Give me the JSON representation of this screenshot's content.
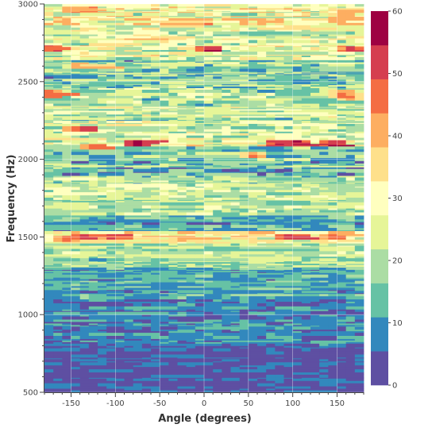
{
  "chart_data": {
    "type": "heatmap",
    "title": "",
    "xlabel": "Angle (degrees)",
    "ylabel": "Frequency (Hz)",
    "xlim": [
      -180,
      180
    ],
    "ylim": [
      500,
      3000
    ],
    "x_ticks": [
      -150,
      -100,
      -50,
      0,
      50,
      100,
      150
    ],
    "y_ticks": [
      500,
      1000,
      1500,
      2000,
      2500,
      3000
    ],
    "x_centers": [
      -175,
      -165,
      -155,
      -145,
      -135,
      -125,
      -115,
      -105,
      -95,
      -85,
      -75,
      -65,
      -55,
      -45,
      -35,
      -25,
      -15,
      -5,
      5,
      15,
      25,
      35,
      45,
      55,
      65,
      75,
      85,
      95,
      105,
      115,
      125,
      135,
      145,
      155,
      165,
      175
    ],
    "colorbar": {
      "min": 0,
      "max": 60,
      "ticks": [
        0,
        10,
        20,
        30,
        40,
        50,
        60
      ],
      "palette": [
        "#5e4fa2",
        "#3288bd",
        "#66c2a5",
        "#abdda4",
        "#e6f598",
        "#ffffbf",
        "#fee08b",
        "#fdae61",
        "#f46d43",
        "#d53e4f",
        "#9e0142"
      ]
    },
    "row_groups": [
      {
        "y_from": 500,
        "y_to": 800,
        "mean": 4,
        "spread": 4
      },
      {
        "y_from": 800,
        "y_to": 1100,
        "mean": 8,
        "spread": 5
      },
      {
        "y_from": 1100,
        "y_to": 1300,
        "mean": 11,
        "spread": 6
      },
      {
        "y_from": 1300,
        "y_to": 1460,
        "mean": 20,
        "spread": 7
      },
      {
        "y_from": 1460,
        "y_to": 1540,
        "mean": 28,
        "spread": 9
      },
      {
        "y_from": 1540,
        "y_to": 1650,
        "mean": 12,
        "spread": 7
      },
      {
        "y_from": 1650,
        "y_to": 1880,
        "mean": 21,
        "spread": 8
      },
      {
        "y_from": 1880,
        "y_to": 2080,
        "mean": 16,
        "spread": 9
      },
      {
        "y_from": 2080,
        "y_to": 2240,
        "mean": 26,
        "spread": 10
      },
      {
        "y_from": 2240,
        "y_to": 2480,
        "mean": 21,
        "spread": 10
      },
      {
        "y_from": 2480,
        "y_to": 2650,
        "mean": 16,
        "spread": 9
      },
      {
        "y_from": 2650,
        "y_to": 2850,
        "mean": 27,
        "spread": 10
      },
      {
        "y_from": 2850,
        "y_to": 3000,
        "mean": 30,
        "spread": 11
      }
    ],
    "hot_spots": [
      {
        "x": -150,
        "y": 2960,
        "value": 45
      },
      {
        "x": -130,
        "y": 2960,
        "value": 46
      },
      {
        "x": -160,
        "y": 2900,
        "value": 42
      },
      {
        "x": 160,
        "y": 2940,
        "value": 44
      },
      {
        "x": 150,
        "y": 2900,
        "value": 42
      },
      {
        "x": -170,
        "y": 2720,
        "value": 52
      },
      {
        "x": 5,
        "y": 2710,
        "value": 54
      },
      {
        "x": 165,
        "y": 2710,
        "value": 50
      },
      {
        "x": -140,
        "y": 2600,
        "value": 42
      },
      {
        "x": -175,
        "y": 2420,
        "value": 43
      },
      {
        "x": 155,
        "y": 2420,
        "value": 43
      },
      {
        "x": 165,
        "y": 2400,
        "value": 42
      },
      {
        "x": -140,
        "y": 2200,
        "value": 52
      },
      {
        "x": -150,
        "y": 2200,
        "value": 44
      },
      {
        "x": -75,
        "y": 2100,
        "value": 58
      },
      {
        "x": 85,
        "y": 2110,
        "value": 55
      },
      {
        "x": 105,
        "y": 2100,
        "value": 54
      },
      {
        "x": 145,
        "y": 2100,
        "value": 53
      },
      {
        "x": -125,
        "y": 2080,
        "value": 46
      },
      {
        "x": 55,
        "y": 2030,
        "value": 44
      },
      {
        "x": -135,
        "y": 1500,
        "value": 52
      },
      {
        "x": -105,
        "y": 1500,
        "value": 50
      },
      {
        "x": 95,
        "y": 1500,
        "value": 53
      },
      {
        "x": 145,
        "y": 1500,
        "value": 46
      },
      {
        "x": -155,
        "y": 1490,
        "value": 46
      },
      {
        "x": -25,
        "y": 1490,
        "value": 42
      }
    ]
  }
}
